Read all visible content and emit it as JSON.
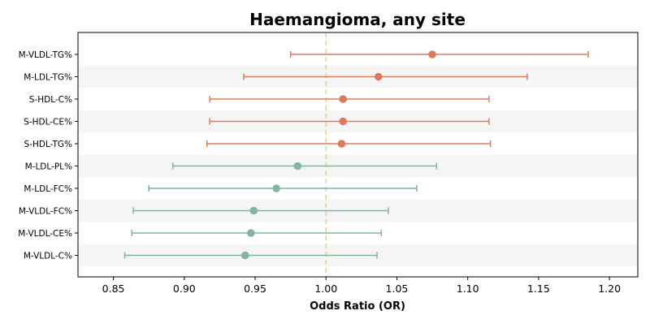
{
  "chart_data": {
    "type": "forest",
    "title": "Haemangioma, any site",
    "xlabel": "Odds Ratio (OR)",
    "ylabel": "",
    "xlim": [
      0.825,
      1.22
    ],
    "x_ticks": [
      "0.85",
      "0.90",
      "0.95",
      "1.00",
      "1.05",
      "1.10",
      "1.15",
      "1.20"
    ],
    "reference_line": 1.0,
    "grid": false,
    "row_shading": "alternating",
    "colors": {
      "positive": "#dd7a5d",
      "negative": "#82b59b",
      "reference": "#f1c88d",
      "shade": "#f5f5f5"
    },
    "rows": [
      {
        "label": "M-VLDL-TG%",
        "or": 1.075,
        "lower": 0.975,
        "upper": 1.185
      },
      {
        "label": "M-LDL-TG%",
        "or": 1.037,
        "lower": 0.942,
        "upper": 1.142
      },
      {
        "label": "S-HDL-C%",
        "or": 1.012,
        "lower": 0.918,
        "upper": 1.115
      },
      {
        "label": "S-HDL-CE%",
        "or": 1.012,
        "lower": 0.918,
        "upper": 1.115
      },
      {
        "label": "S-HDL-TG%",
        "or": 1.011,
        "lower": 0.916,
        "upper": 1.116
      },
      {
        "label": "M-LDL-PL%",
        "or": 0.98,
        "lower": 0.892,
        "upper": 1.078
      },
      {
        "label": "M-LDL-FC%",
        "or": 0.965,
        "lower": 0.875,
        "upper": 1.064
      },
      {
        "label": "M-VLDL-FC%",
        "or": 0.949,
        "lower": 0.864,
        "upper": 1.044
      },
      {
        "label": "M-VLDL-CE%",
        "or": 0.947,
        "lower": 0.863,
        "upper": 1.039
      },
      {
        "label": "M-VLDL-C%",
        "or": 0.943,
        "lower": 0.858,
        "upper": 1.036
      }
    ]
  }
}
